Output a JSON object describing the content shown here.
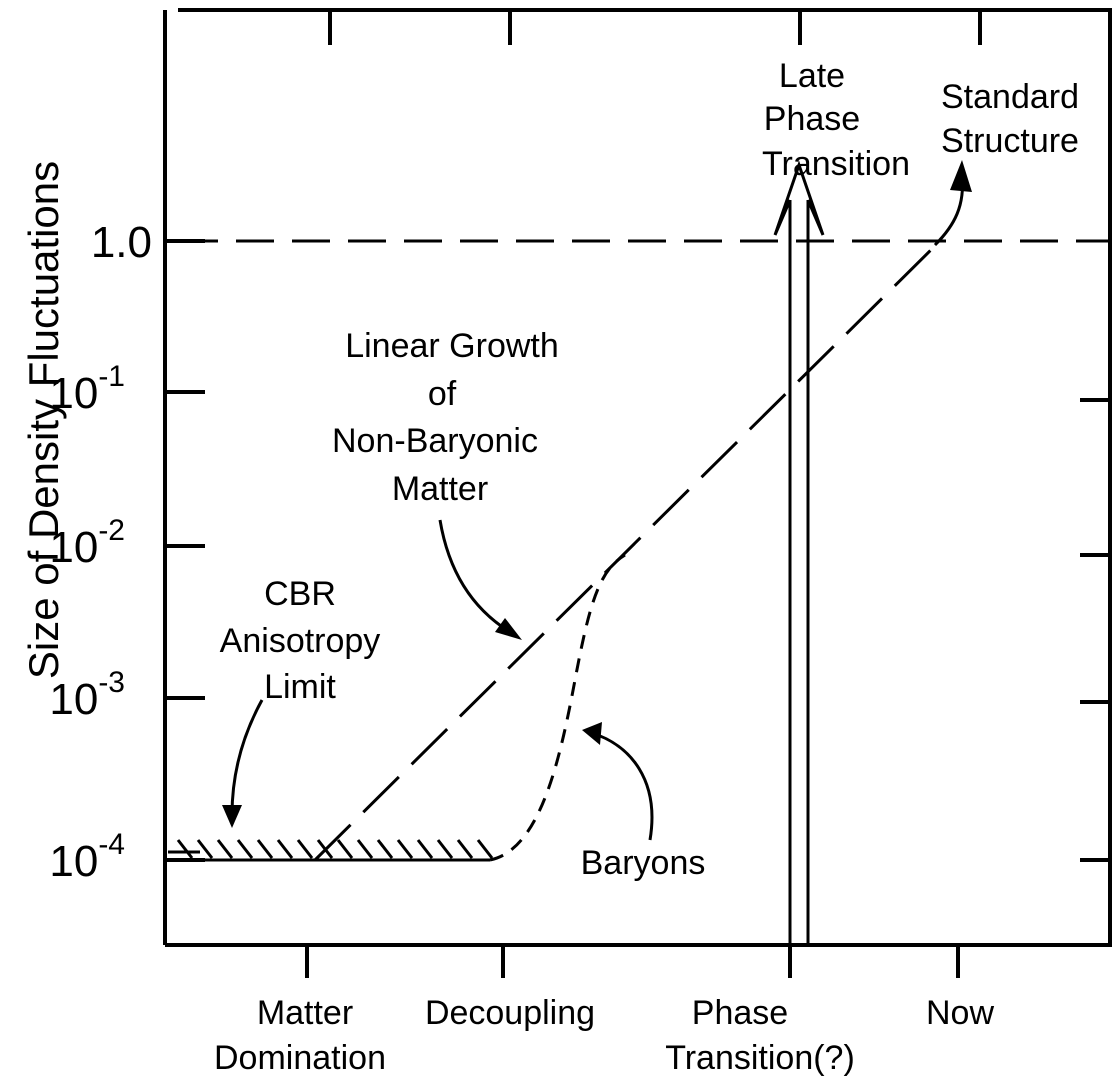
{
  "y_axis": {
    "label": "Size of Density Fluctuations",
    "ticks": [
      {
        "base": "1.0"
      },
      {
        "base": "10",
        "exp": "-1"
      },
      {
        "base": "10",
        "exp": "-2"
      },
      {
        "base": "10",
        "exp": "-3"
      },
      {
        "base": "10",
        "exp": "-4"
      }
    ]
  },
  "x_axis": {
    "ticks": [
      [
        "Matter",
        "Domination"
      ],
      [
        "Decoupling"
      ],
      [
        "Phase",
        "Transition(?)"
      ],
      [
        "Now"
      ]
    ]
  },
  "annotations": {
    "late_phase_transition": [
      "Late",
      "Phase",
      "Transition"
    ],
    "standard_structure": [
      "Standard",
      "Structure"
    ],
    "linear_growth": [
      "Linear Growth",
      "of",
      "Non-Baryonic",
      "Matter"
    ],
    "cbr_limit": [
      "CBR",
      "Anisotropy",
      "Limit"
    ],
    "baryons": [
      "Baryons"
    ]
  }
}
